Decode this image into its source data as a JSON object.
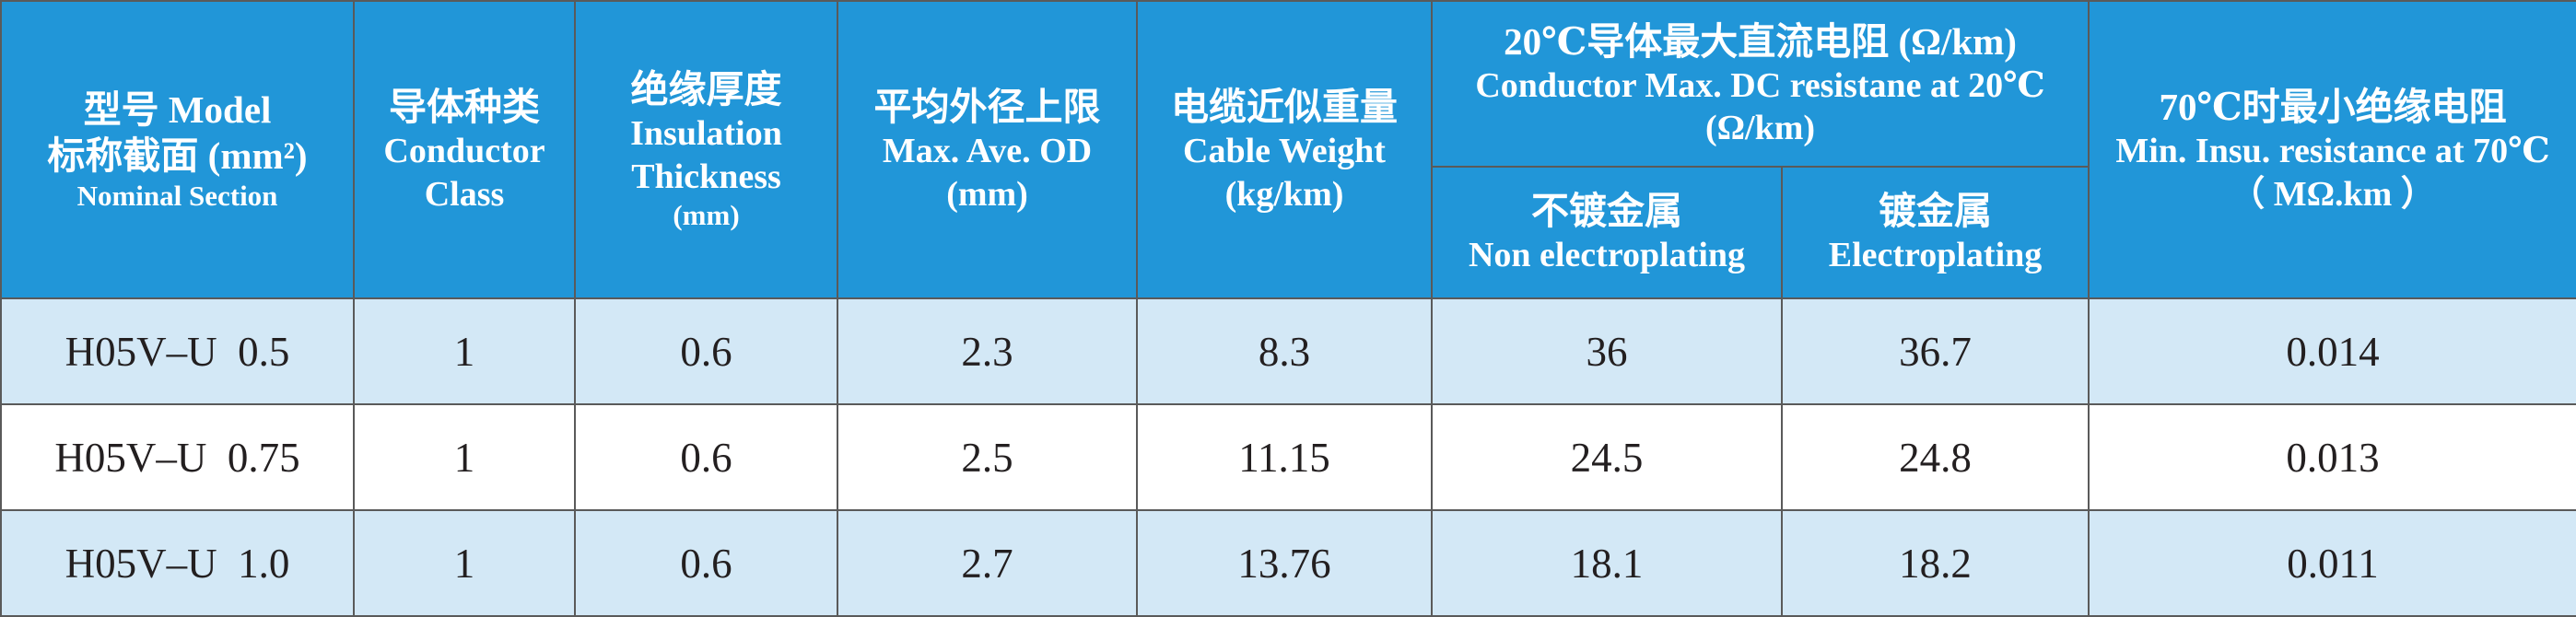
{
  "header": {
    "model": {
      "zh": "型号 Model",
      "zh2": "标称截面 (mm²)",
      "en": "Nominal Section"
    },
    "conductor_class": {
      "zh": "导体种类",
      "en1": "Conductor",
      "en2": "Class"
    },
    "insulation": {
      "zh": "绝缘厚度",
      "en1": "Insulation",
      "en2": "Thickness",
      "unit": "(mm)"
    },
    "od": {
      "zh": "平均外径上限",
      "en": "Max. Ave. OD",
      "unit": "(mm)"
    },
    "weight": {
      "zh": "电缆近似重量",
      "en": "Cable Weight",
      "unit": "(kg/km)"
    },
    "resistance": {
      "zh": "20℃导体最大直流电阻 (Ω/km)",
      "en": "Conductor Max. DC resistane at 20℃",
      "unit": "(Ω/km)",
      "sub_non": {
        "zh": "不镀金属",
        "en": "Non electroplating"
      },
      "sub_plated": {
        "zh": "镀金属",
        "en": "Electroplating"
      }
    },
    "insu_resistance": {
      "zh": "70℃时最小绝缘电阻",
      "en": "Min. Insu. resistance at 70℃",
      "unit": "（ MΩ.km ）"
    }
  },
  "rows": [
    {
      "model": "H05V–U  0.5",
      "class": "1",
      "insulation": "0.6",
      "od": "2.3",
      "weight": "8.3",
      "res_non": "36",
      "res_plated": "36.7",
      "insu_res": "0.014"
    },
    {
      "model": "H05V–U  0.75",
      "class": "1",
      "insulation": "0.6",
      "od": "2.5",
      "weight": "11.15",
      "res_non": "24.5",
      "res_plated": "24.8",
      "insu_res": "0.013"
    },
    {
      "model": "H05V–U  1.0",
      "class": "1",
      "insulation": "0.6",
      "od": "2.7",
      "weight": "13.76",
      "res_non": "18.1",
      "res_plated": "18.2",
      "insu_res": "0.011"
    }
  ],
  "colors": {
    "header_bg": "#2196d8",
    "row_light": "#d3e8f6",
    "row_white": "#ffffff",
    "border": "#5a5a5a"
  }
}
